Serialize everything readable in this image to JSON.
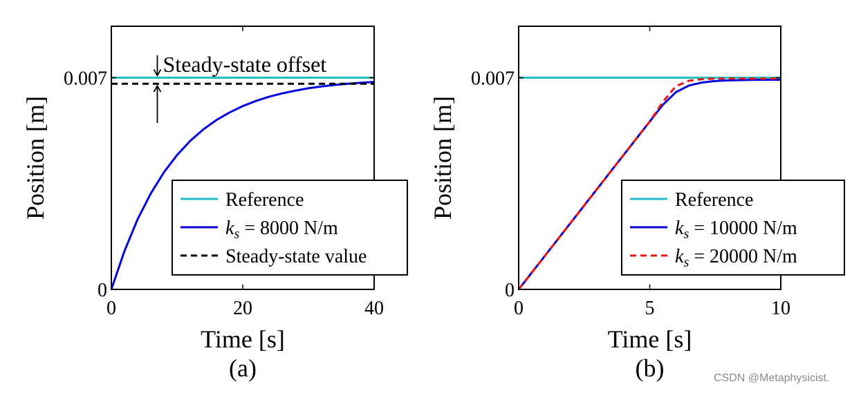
{
  "chart_data": [
    {
      "type": "line",
      "panel_label": "(a)",
      "xlabel": "Time [s]",
      "ylabel": "Position [m]",
      "xlim": [
        0,
        40
      ],
      "ylim": [
        0,
        0.0087
      ],
      "xticks": [
        0,
        20,
        40
      ],
      "xtick_labels": [
        "0",
        "20",
        "40"
      ],
      "yticks": [
        0,
        0.007
      ],
      "ytick_labels": [
        "0",
        "0.007"
      ],
      "grid": false,
      "legend_position": "lower-right",
      "annotation": "Steady-state offset",
      "annotation_x": 7,
      "series": [
        {
          "name": "Reference",
          "color": "#1fbfbf",
          "dash": "solid",
          "x": [
            0,
            40
          ],
          "y": [
            0.007,
            0.007
          ]
        },
        {
          "name": "k_s = 8000 N/m",
          "legend_prefix": "k",
          "legend_sub": "s",
          "legend_suffix": " = 8000 N/m",
          "color": "#0000dd",
          "dash": "solid",
          "x": [
            0,
            2,
            4,
            6,
            8,
            10,
            12,
            14,
            16,
            18,
            20,
            22,
            24,
            26,
            28,
            30,
            32,
            34,
            36,
            38,
            40
          ],
          "y": [
            0,
            0.00127,
            0.00232,
            0.00317,
            0.00387,
            0.00444,
            0.00491,
            0.00529,
            0.0056,
            0.00585,
            0.00606,
            0.00623,
            0.00637,
            0.00648,
            0.00657,
            0.00665,
            0.00671,
            0.00676,
            0.0068,
            0.00683,
            0.00686
          ]
        },
        {
          "name": "Steady-state value",
          "color": "#000000",
          "dash": "dashed",
          "x": [
            0,
            40
          ],
          "y": [
            0.0068,
            0.0068
          ]
        }
      ]
    },
    {
      "type": "line",
      "panel_label": "(b)",
      "xlabel": "Time [s]",
      "ylabel": "Position [m]",
      "xlim": [
        0,
        10
      ],
      "ylim": [
        0,
        0.0087
      ],
      "xticks": [
        0,
        5,
        10
      ],
      "xtick_labels": [
        "0",
        "5",
        "10"
      ],
      "yticks": [
        0,
        0.007
      ],
      "ytick_labels": [
        "0",
        "0.007"
      ],
      "grid": false,
      "legend_position": "lower-right",
      "series": [
        {
          "name": "Reference",
          "color": "#1fbfbf",
          "dash": "solid",
          "x": [
            0,
            10
          ],
          "y": [
            0.007,
            0.007
          ]
        },
        {
          "name": "k_s = 10000 N/m",
          "legend_prefix": "k",
          "legend_sub": "s",
          "legend_suffix": " = 10000 N/m",
          "color": "#0000dd",
          "dash": "solid",
          "x": [
            0,
            1,
            2,
            3,
            4,
            5,
            5.5,
            6,
            6.5,
            7,
            7.5,
            8,
            8.5,
            9,
            9.5,
            10
          ],
          "y": [
            0,
            0.00111,
            0.00222,
            0.00333,
            0.00444,
            0.00555,
            0.0061,
            0.00652,
            0.00674,
            0.00684,
            0.00689,
            0.00691,
            0.00692,
            0.00693,
            0.00693,
            0.00693
          ]
        },
        {
          "name": "k_s = 20000 N/m",
          "legend_prefix": "k",
          "legend_sub": "s",
          "legend_suffix": " = 20000 N/m",
          "color": "#ee1111",
          "dash": "dashed",
          "x": [
            0,
            1,
            2,
            3,
            4,
            5,
            5.5,
            6,
            6.5,
            7,
            7.5,
            8,
            9,
            10
          ],
          "y": [
            0,
            0.00111,
            0.00222,
            0.00333,
            0.00444,
            0.00555,
            0.0062,
            0.00672,
            0.0069,
            0.00695,
            0.00697,
            0.00697,
            0.00697,
            0.00697
          ]
        }
      ]
    }
  ],
  "watermark": "CSDN @Metaphysicist."
}
